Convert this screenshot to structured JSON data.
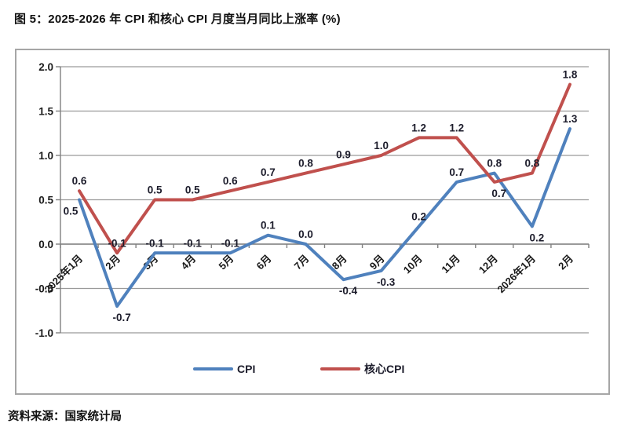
{
  "page": {
    "title": "图 5：2025-2026 年 CPI 和核心 CPI 月度当月同比上涨率 (%)",
    "source": "资料来源：国家统计局"
  },
  "chart_data": {
    "type": "line",
    "title": "2025-2026 年 CPI 和核心 CPI 月度当月同比上涨率 (%)",
    "categories": [
      "2025年1月",
      "2月",
      "3月",
      "4月",
      "5月",
      "6月",
      "7月",
      "8月",
      "9月",
      "10月",
      "11月",
      "12月",
      "2026年1月",
      "2月"
    ],
    "series": [
      {
        "name": "CPI",
        "color": "#4F81BD",
        "values": [
          0.5,
          -0.7,
          -0.1,
          -0.1,
          -0.1,
          0.1,
          0.0,
          -0.4,
          -0.3,
          0.2,
          0.7,
          0.8,
          0.2,
          1.3
        ],
        "label_pos": [
          "below-left",
          "below",
          "above",
          "above",
          "above",
          "above",
          "above",
          "below",
          "below",
          "above",
          "above",
          "above",
          "below",
          "above"
        ]
      },
      {
        "name": "核心CPI",
        "color": "#C0504D",
        "values": [
          0.6,
          -0.1,
          0.5,
          0.5,
          0.6,
          0.7,
          0.8,
          0.9,
          1.0,
          1.2,
          1.2,
          0.7,
          0.8,
          1.8
        ],
        "label_pos": [
          "above",
          "above",
          "above",
          "above",
          "above",
          "above",
          "above",
          "above",
          "above",
          "above",
          "above",
          "below",
          "above",
          "above"
        ]
      }
    ],
    "y_ticks": [
      2.0,
      1.5,
      1.0,
      0.5,
      0.0,
      -0.5,
      -1.0
    ],
    "ylim": [
      -1.0,
      2.0
    ],
    "xlabel": "",
    "ylabel": "",
    "grid": true,
    "data_labels": true,
    "label_decimals": 1,
    "legend_position": "bottom",
    "colors": {
      "grid": "#9a9a9a",
      "axis": "#808080",
      "text": "#1a1a1a",
      "data_label": "#1c1c2b"
    }
  }
}
